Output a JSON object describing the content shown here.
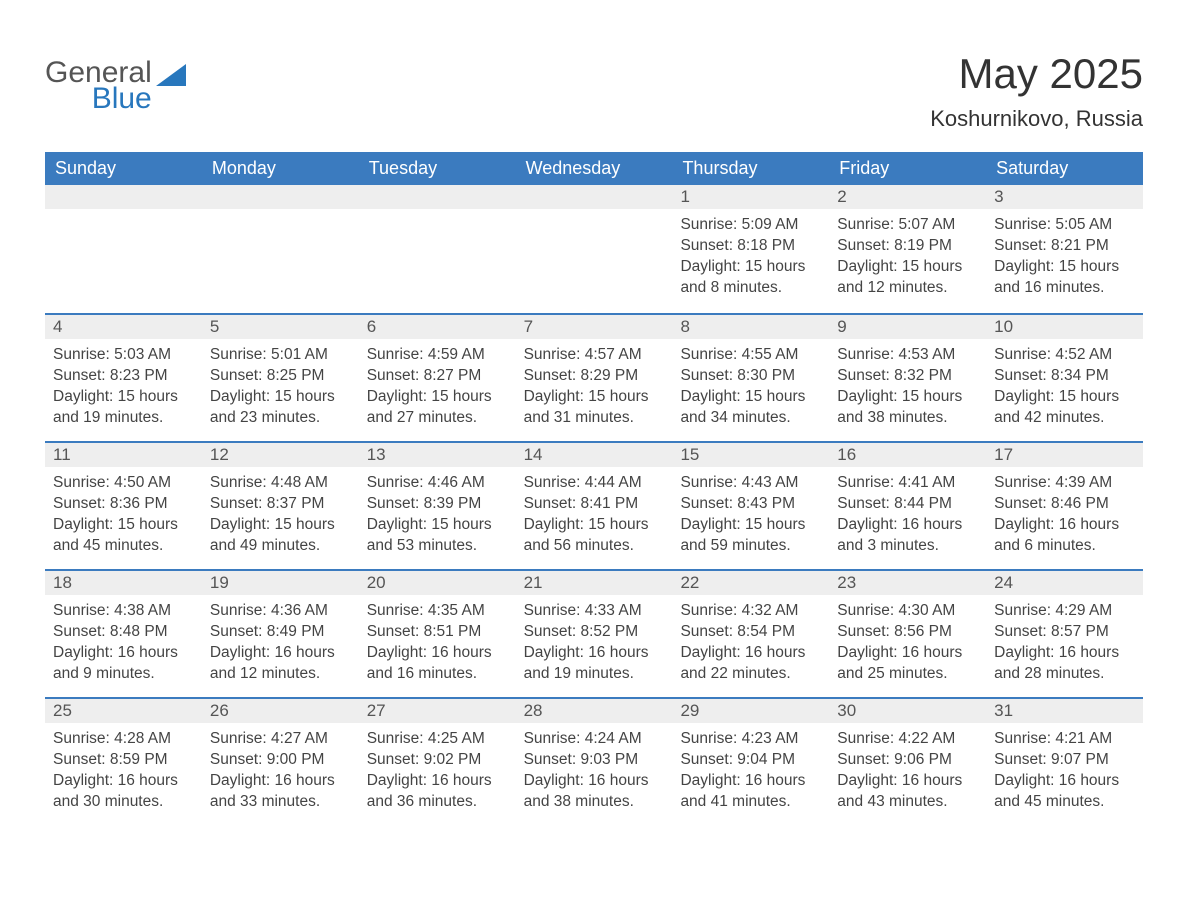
{
  "logo": {
    "text1": "General",
    "text2": "Blue"
  },
  "title": "May 2025",
  "location": "Koshurnikovo, Russia",
  "colors": {
    "header_bg": "#3b7bbf",
    "header_text": "#ffffff",
    "daynum_bg": "#eeeeee",
    "border": "#3b7bbf",
    "body_text": "#444444",
    "title_text": "#333333",
    "logo_gray": "#555555",
    "logo_blue": "#2877bd",
    "page_bg": "#ffffff"
  },
  "fonts": {
    "title_size_pt": 32,
    "location_size_pt": 17,
    "header_size_pt": 14,
    "daynum_size_pt": 13,
    "body_size_pt": 12
  },
  "day_names": [
    "Sunday",
    "Monday",
    "Tuesday",
    "Wednesday",
    "Thursday",
    "Friday",
    "Saturday"
  ],
  "weeks": [
    [
      null,
      null,
      null,
      null,
      {
        "n": "1",
        "sr": "Sunrise: 5:09 AM",
        "ss": "Sunset: 8:18 PM",
        "dl": "Daylight: 15 hours and 8 minutes."
      },
      {
        "n": "2",
        "sr": "Sunrise: 5:07 AM",
        "ss": "Sunset: 8:19 PM",
        "dl": "Daylight: 15 hours and 12 minutes."
      },
      {
        "n": "3",
        "sr": "Sunrise: 5:05 AM",
        "ss": "Sunset: 8:21 PM",
        "dl": "Daylight: 15 hours and 16 minutes."
      }
    ],
    [
      {
        "n": "4",
        "sr": "Sunrise: 5:03 AM",
        "ss": "Sunset: 8:23 PM",
        "dl": "Daylight: 15 hours and 19 minutes."
      },
      {
        "n": "5",
        "sr": "Sunrise: 5:01 AM",
        "ss": "Sunset: 8:25 PM",
        "dl": "Daylight: 15 hours and 23 minutes."
      },
      {
        "n": "6",
        "sr": "Sunrise: 4:59 AM",
        "ss": "Sunset: 8:27 PM",
        "dl": "Daylight: 15 hours and 27 minutes."
      },
      {
        "n": "7",
        "sr": "Sunrise: 4:57 AM",
        "ss": "Sunset: 8:29 PM",
        "dl": "Daylight: 15 hours and 31 minutes."
      },
      {
        "n": "8",
        "sr": "Sunrise: 4:55 AM",
        "ss": "Sunset: 8:30 PM",
        "dl": "Daylight: 15 hours and 34 minutes."
      },
      {
        "n": "9",
        "sr": "Sunrise: 4:53 AM",
        "ss": "Sunset: 8:32 PM",
        "dl": "Daylight: 15 hours and 38 minutes."
      },
      {
        "n": "10",
        "sr": "Sunrise: 4:52 AM",
        "ss": "Sunset: 8:34 PM",
        "dl": "Daylight: 15 hours and 42 minutes."
      }
    ],
    [
      {
        "n": "11",
        "sr": "Sunrise: 4:50 AM",
        "ss": "Sunset: 8:36 PM",
        "dl": "Daylight: 15 hours and 45 minutes."
      },
      {
        "n": "12",
        "sr": "Sunrise: 4:48 AM",
        "ss": "Sunset: 8:37 PM",
        "dl": "Daylight: 15 hours and 49 minutes."
      },
      {
        "n": "13",
        "sr": "Sunrise: 4:46 AM",
        "ss": "Sunset: 8:39 PM",
        "dl": "Daylight: 15 hours and 53 minutes."
      },
      {
        "n": "14",
        "sr": "Sunrise: 4:44 AM",
        "ss": "Sunset: 8:41 PM",
        "dl": "Daylight: 15 hours and 56 minutes."
      },
      {
        "n": "15",
        "sr": "Sunrise: 4:43 AM",
        "ss": "Sunset: 8:43 PM",
        "dl": "Daylight: 15 hours and 59 minutes."
      },
      {
        "n": "16",
        "sr": "Sunrise: 4:41 AM",
        "ss": "Sunset: 8:44 PM",
        "dl": "Daylight: 16 hours and 3 minutes."
      },
      {
        "n": "17",
        "sr": "Sunrise: 4:39 AM",
        "ss": "Sunset: 8:46 PM",
        "dl": "Daylight: 16 hours and 6 minutes."
      }
    ],
    [
      {
        "n": "18",
        "sr": "Sunrise: 4:38 AM",
        "ss": "Sunset: 8:48 PM",
        "dl": "Daylight: 16 hours and 9 minutes."
      },
      {
        "n": "19",
        "sr": "Sunrise: 4:36 AM",
        "ss": "Sunset: 8:49 PM",
        "dl": "Daylight: 16 hours and 12 minutes."
      },
      {
        "n": "20",
        "sr": "Sunrise: 4:35 AM",
        "ss": "Sunset: 8:51 PM",
        "dl": "Daylight: 16 hours and 16 minutes."
      },
      {
        "n": "21",
        "sr": "Sunrise: 4:33 AM",
        "ss": "Sunset: 8:52 PM",
        "dl": "Daylight: 16 hours and 19 minutes."
      },
      {
        "n": "22",
        "sr": "Sunrise: 4:32 AM",
        "ss": "Sunset: 8:54 PM",
        "dl": "Daylight: 16 hours and 22 minutes."
      },
      {
        "n": "23",
        "sr": "Sunrise: 4:30 AM",
        "ss": "Sunset: 8:56 PM",
        "dl": "Daylight: 16 hours and 25 minutes."
      },
      {
        "n": "24",
        "sr": "Sunrise: 4:29 AM",
        "ss": "Sunset: 8:57 PM",
        "dl": "Daylight: 16 hours and 28 minutes."
      }
    ],
    [
      {
        "n": "25",
        "sr": "Sunrise: 4:28 AM",
        "ss": "Sunset: 8:59 PM",
        "dl": "Daylight: 16 hours and 30 minutes."
      },
      {
        "n": "26",
        "sr": "Sunrise: 4:27 AM",
        "ss": "Sunset: 9:00 PM",
        "dl": "Daylight: 16 hours and 33 minutes."
      },
      {
        "n": "27",
        "sr": "Sunrise: 4:25 AM",
        "ss": "Sunset: 9:02 PM",
        "dl": "Daylight: 16 hours and 36 minutes."
      },
      {
        "n": "28",
        "sr": "Sunrise: 4:24 AM",
        "ss": "Sunset: 9:03 PM",
        "dl": "Daylight: 16 hours and 38 minutes."
      },
      {
        "n": "29",
        "sr": "Sunrise: 4:23 AM",
        "ss": "Sunset: 9:04 PM",
        "dl": "Daylight: 16 hours and 41 minutes."
      },
      {
        "n": "30",
        "sr": "Sunrise: 4:22 AM",
        "ss": "Sunset: 9:06 PM",
        "dl": "Daylight: 16 hours and 43 minutes."
      },
      {
        "n": "31",
        "sr": "Sunrise: 4:21 AM",
        "ss": "Sunset: 9:07 PM",
        "dl": "Daylight: 16 hours and 45 minutes."
      }
    ]
  ]
}
